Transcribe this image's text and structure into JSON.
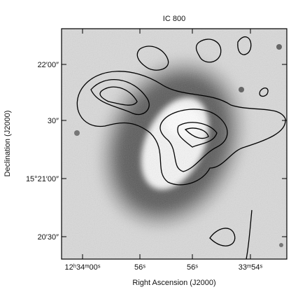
{
  "title": "IC 800",
  "x_label": "Right Ascension (J2000)",
  "y_label": "Declination (J2000)",
  "x_ticks": [
    "12ʰ34ᵐ00ˢ",
    "56ˢ",
    "56ˢ",
    "33ᵐ54ˢ"
  ],
  "y_ticks": [
    "22′00″",
    "30″",
    "15°21′00″",
    "20′30″"
  ]
}
